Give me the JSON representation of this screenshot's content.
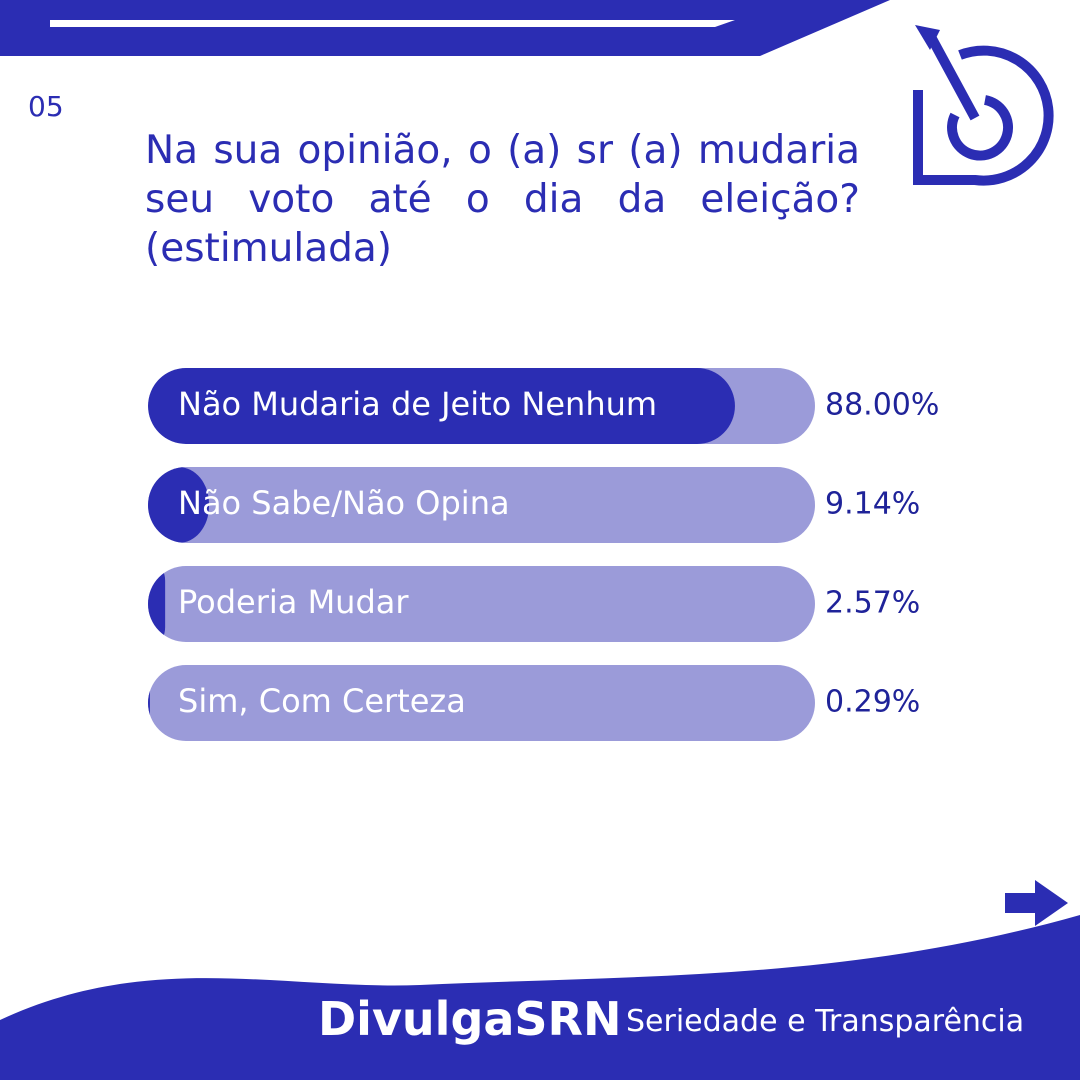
{
  "page": {
    "number": "05",
    "brand": "DivulgaSRN",
    "tagline": "Seriedade e Transparência"
  },
  "chart_data": {
    "type": "bar",
    "orientation": "horizontal",
    "title": "Na sua opinião, o (a) sr (a) mudaria seu voto até o dia da eleição? (estimulada)",
    "categories": [
      "Não Mudaria de Jeito Nenhum",
      "Não Sabe/Não Opina",
      "Poderia Mudar",
      "Sim, Com Certeza"
    ],
    "values": [
      88,
      9.14,
      2.57,
      0.29
    ],
    "value_labels": [
      "88.00%",
      "9.14%",
      "2.57%",
      "0.29%"
    ],
    "color": "#2b2db3",
    "track_color": "#9b9bd9"
  }
}
